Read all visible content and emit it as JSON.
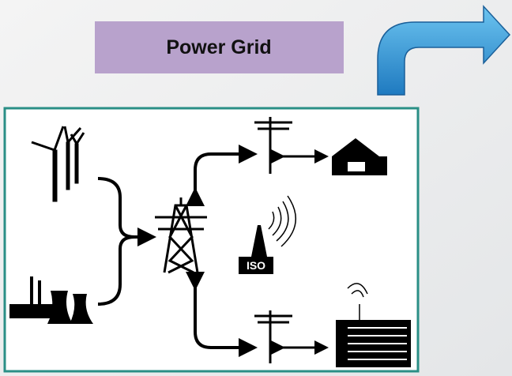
{
  "header": {
    "title": "Power Grid"
  },
  "nodes": [
    {
      "label": "ISO"
    }
  ]
}
